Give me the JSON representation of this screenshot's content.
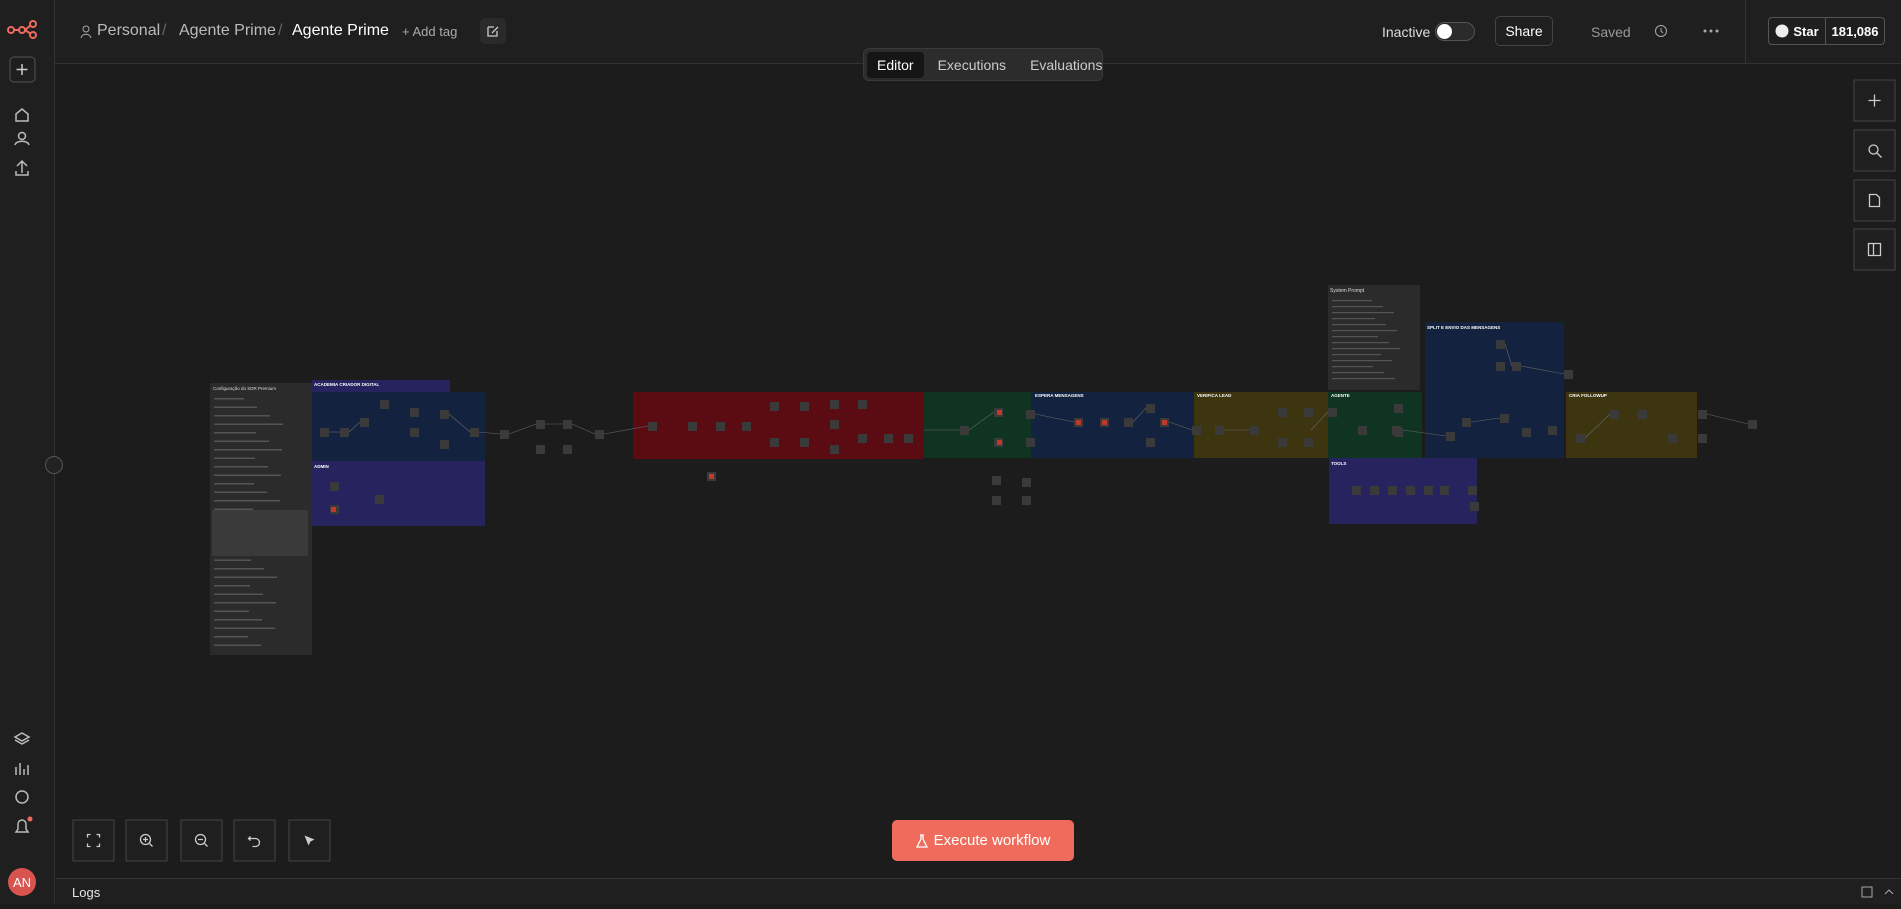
{
  "header": {
    "project": "Personal",
    "folder": "Agente Prime",
    "title": "Agente Prime",
    "add_tag": "+ Add tag"
  },
  "status": {
    "active_label": "Inactive",
    "share": "Share",
    "saved": "Saved"
  },
  "github": {
    "star": "Star",
    "count": "181,086"
  },
  "tabs": [
    "Editor",
    "Executions",
    "Evaluations"
  ],
  "canvas": {
    "notes": [
      "Configuração do SDR Premium",
      "System Prompt"
    ],
    "groups": [
      "ACADEMIA CRIADOR DIGITAL",
      "ADMIN",
      "ESPERA MENSAGENS",
      "VERIFICA LEAD",
      "AGENTE",
      "SPLIT E ENVIO DAS MENSAGENS",
      "CRIA FOLLOWUP",
      "TOOLS"
    ]
  },
  "execute": "Execute workflow",
  "logs": "Logs",
  "avatar": "AN"
}
